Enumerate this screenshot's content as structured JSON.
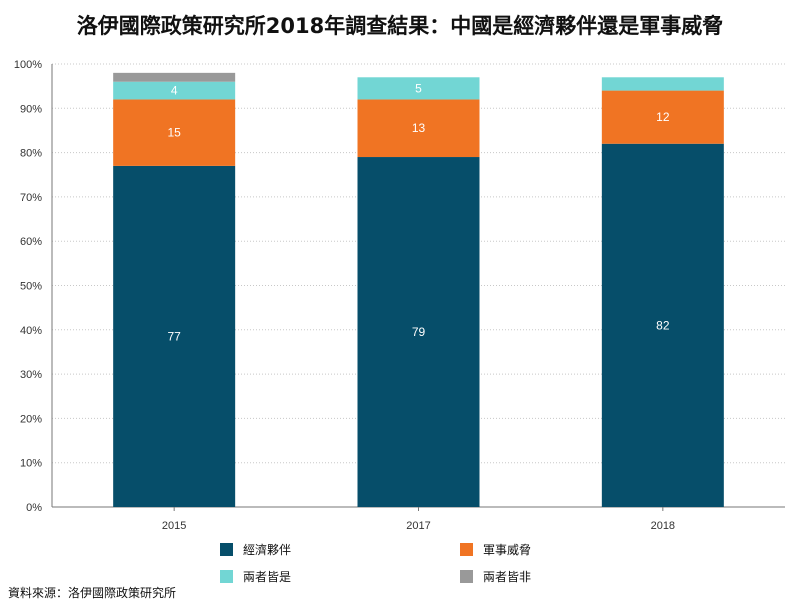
{
  "title": "洛伊國際政策研究所2018年調查結果：中國是經濟夥伴還是軍事威脅",
  "source": "資料來源：洛伊國際政策研究所",
  "chart_data": {
    "type": "bar",
    "stacked": true,
    "categories": [
      "2015",
      "2017",
      "2018"
    ],
    "series": [
      {
        "name": "經濟夥伴",
        "color": "#064e6a",
        "label_color": "#ffffff",
        "values": [
          77,
          79,
          82
        ]
      },
      {
        "name": "軍事威脅",
        "color": "#f07423",
        "label_color": "#ffffff",
        "values": [
          15,
          13,
          12
        ]
      },
      {
        "name": "兩者皆是",
        "color": "#72d6d4",
        "label_color": "#ffffff",
        "values": [
          4,
          5,
          3
        ]
      },
      {
        "name": "兩者皆非",
        "color": "#999999",
        "label_color": "#ffffff",
        "values": [
          2,
          0,
          0
        ]
      }
    ],
    "data_labels": [
      [
        77,
        79,
        82
      ],
      [
        15,
        13,
        12
      ],
      [
        4,
        5,
        null
      ],
      [
        null,
        null,
        null
      ]
    ],
    "ylim": [
      0,
      100
    ],
    "yticks": [
      "0%",
      "10%",
      "20%",
      "30%",
      "40%",
      "50%",
      "60%",
      "70%",
      "80%",
      "90%",
      "100%"
    ],
    "grid": true,
    "legend_position": "bottom"
  }
}
